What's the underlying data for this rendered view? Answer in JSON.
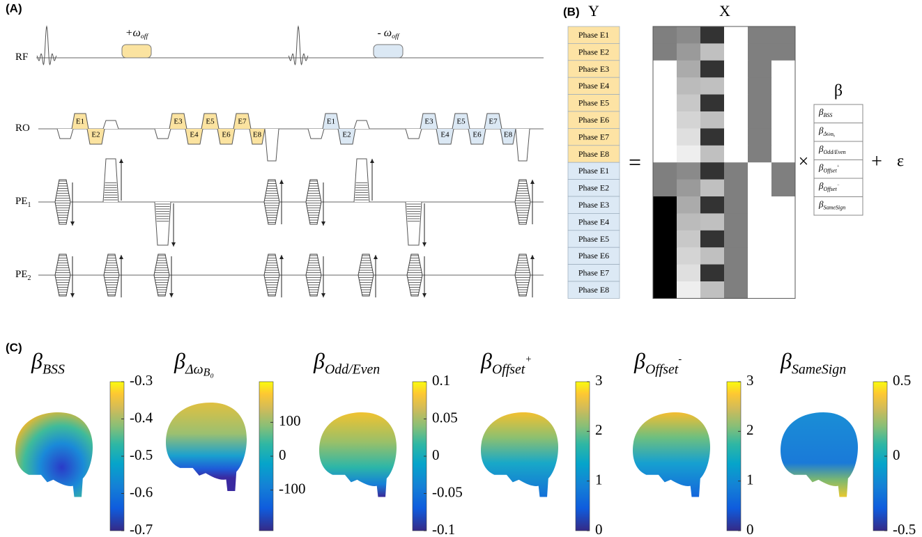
{
  "panel_labels": [
    "(A)",
    "(B)",
    "(C)"
  ],
  "sequence": {
    "rows": [
      {
        "label": "RF"
      },
      {
        "label": "RO"
      },
      {
        "label": "PE",
        "sub": "1"
      },
      {
        "label": "PE",
        "sub": "2"
      }
    ],
    "pulses": [
      {
        "symbol": "+ω",
        "sub": "off"
      },
      {
        "symbol": "- ω",
        "sub": "off"
      }
    ],
    "echo_labels": [
      "E1",
      "E2",
      "E3",
      "E4",
      "E5",
      "E6",
      "E7",
      "E8"
    ]
  },
  "model": {
    "y_label": "Y",
    "x_label": "X",
    "equals": "=",
    "times": "×",
    "plus": "+",
    "epsilon": "ε",
    "beta": "β",
    "phases": [
      "Phase E1",
      "Phase E2",
      "Phase E3",
      "Phase E4",
      "Phase E5",
      "Phase E6",
      "Phase E7",
      "Phase E8",
      "Phase E1",
      "Phase E2",
      "Phase E3",
      "Phase E4",
      "Phase E5",
      "Phase E6",
      "Phase E7",
      "Phase E8"
    ],
    "coefficients": [
      {
        "symbol": "β",
        "sub": "BSS"
      },
      {
        "symbol": "β",
        "sub": "Δω",
        "subsub": "B₀"
      },
      {
        "symbol": "β",
        "sub": "Odd/Even"
      },
      {
        "symbol": "β",
        "sub": "Offset",
        "sup": "+"
      },
      {
        "symbol": "β",
        "sub": "Offset",
        "sup": "−"
      },
      {
        "symbol": "β",
        "sub": "SameSign"
      }
    ]
  },
  "maps": [
    {
      "symbol": "β",
      "sub": "BSS",
      "lim": [
        -0.7,
        -0.3
      ],
      "ticks": [
        -0.3,
        -0.4,
        -0.5,
        -0.6,
        -0.7
      ]
    },
    {
      "symbol": "β",
      "sub": "Δω",
      "subsub": "B₀",
      "lim": [
        -220,
        220
      ],
      "ticks": [
        100,
        0,
        -100
      ]
    },
    {
      "symbol": "β",
      "sub": "Odd/Even",
      "lim": [
        -0.1,
        0.1
      ],
      "ticks": [
        0.1,
        0.05,
        0,
        -0.05,
        -0.1
      ]
    },
    {
      "symbol": "β",
      "sub": "Offset",
      "sup": "+",
      "lim": [
        0,
        3
      ],
      "ticks": [
        3,
        2,
        1,
        0
      ]
    },
    {
      "symbol": "β",
      "sub": "Offset",
      "sup": "-",
      "lim": [
        0,
        3
      ],
      "ticks": [
        3,
        2,
        1,
        0
      ]
    },
    {
      "symbol": "β",
      "sub": "SameSign",
      "lim": [
        -0.5,
        0.5
      ],
      "ticks": [
        0.5,
        0,
        -0.5
      ]
    }
  ]
}
